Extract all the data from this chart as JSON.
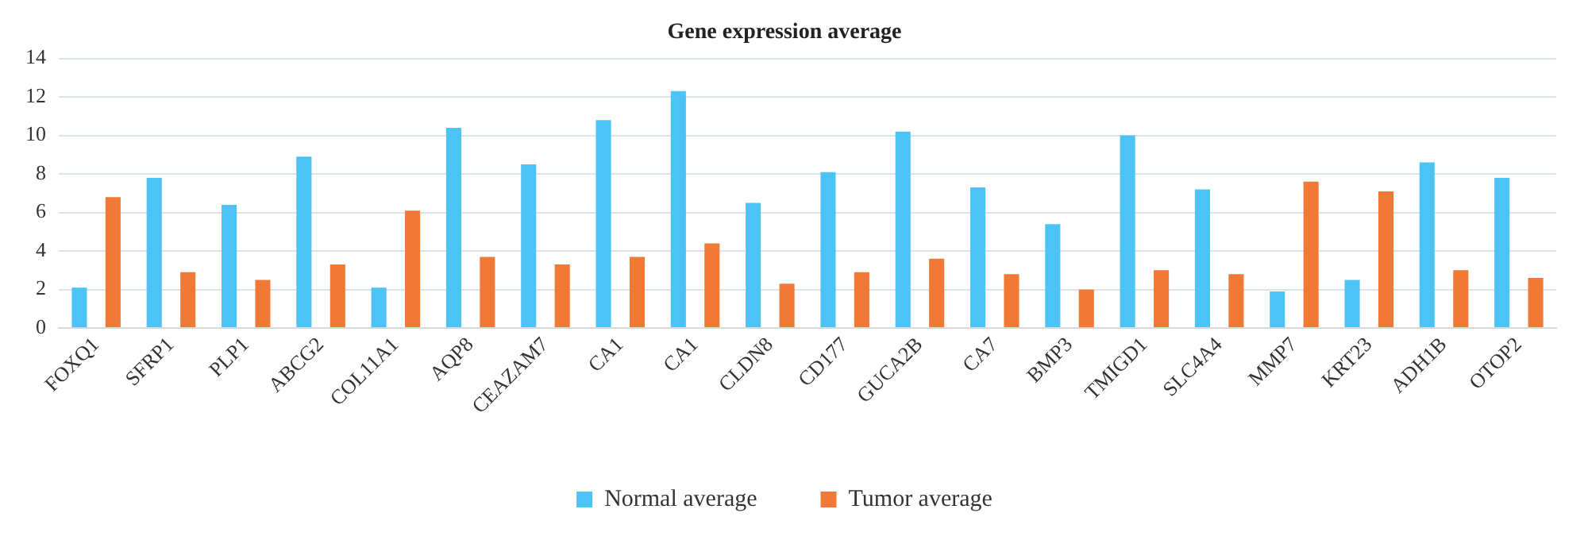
{
  "chart_data": {
    "type": "bar",
    "title": "Gene expression average",
    "categories": [
      "FOXQ1",
      "SFRP1",
      "PLP1",
      "ABCG2",
      "COL11A1",
      "AQP8",
      "CEAZAM7",
      "CA1",
      "CA1",
      "CLDN8",
      "CD177",
      "GUCA2B",
      "CA7",
      "BMP3",
      "TMIGD1",
      "SLC4A4",
      "MMP7",
      "KRT23",
      "ADH1B",
      "OTOP2"
    ],
    "series": [
      {
        "name": "Normal average",
        "color": "#4dc3f5",
        "values": [
          2.1,
          7.8,
          6.4,
          8.9,
          2.1,
          10.4,
          8.5,
          10.8,
          12.3,
          6.5,
          8.1,
          10.2,
          7.3,
          5.4,
          10.0,
          7.2,
          1.9,
          2.5,
          8.6,
          7.8
        ]
      },
      {
        "name": "Tumor average",
        "color": "#f07a35",
        "values": [
          6.8,
          2.9,
          2.5,
          3.3,
          6.1,
          3.7,
          3.3,
          3.7,
          4.4,
          2.3,
          2.9,
          3.6,
          2.8,
          2.0,
          3.0,
          2.8,
          7.6,
          7.1,
          3.0,
          2.6
        ]
      }
    ],
    "ylim": [
      0,
      14
    ],
    "yticks": [
      0,
      2,
      4,
      6,
      8,
      10,
      12,
      14
    ],
    "grid": "y",
    "legend": "bottom"
  }
}
